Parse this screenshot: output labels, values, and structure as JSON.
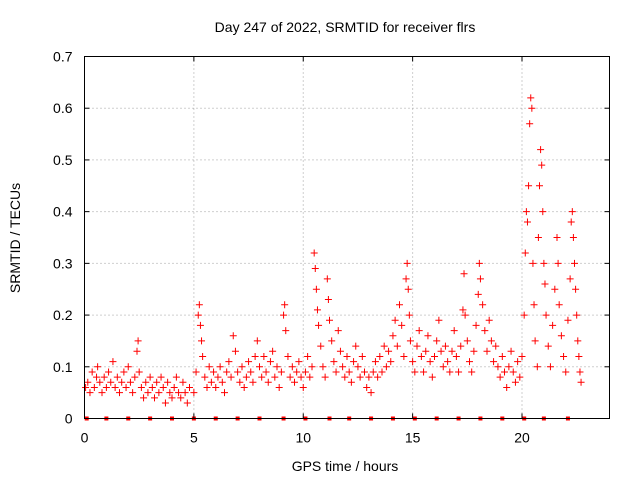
{
  "chart_data": {
    "type": "scatter",
    "title": "Day 247 of 2022, SRMTID for receiver flrs",
    "xlabel": "GPS time / hours",
    "ylabel": "SRMTID / TECUs",
    "xlim": [
      0,
      24
    ],
    "ylim": [
      0,
      0.7
    ],
    "xticks": [
      0,
      5,
      10,
      15,
      20
    ],
    "yticks": [
      0,
      0.1,
      0.2,
      0.3,
      0.4,
      0.5,
      0.6,
      0.7
    ],
    "xtick_labels": [
      "0",
      "5",
      "10",
      "15",
      "20"
    ],
    "ytick_labels": [
      "0",
      "0.1",
      "0.2",
      "0.3",
      "0.4",
      "0.5",
      "0.6",
      "0.7"
    ],
    "grid": true,
    "marker": "+",
    "color": "#ff0000",
    "series": [
      {
        "name": "SRMTID",
        "points": [
          [
            0.05,
            0.06
          ],
          [
            0.15,
            0.07
          ],
          [
            0.25,
            0.05
          ],
          [
            0.35,
            0.09
          ],
          [
            0.45,
            0.06
          ],
          [
            0.55,
            0.08
          ],
          [
            0.6,
            0.1
          ],
          [
            0.7,
            0.07
          ],
          [
            0.8,
            0.05
          ],
          [
            0.9,
            0.08
          ],
          [
            1.0,
            0.06
          ],
          [
            1.1,
            0.09
          ],
          [
            1.2,
            0.07
          ],
          [
            1.3,
            0.11
          ],
          [
            1.4,
            0.06
          ],
          [
            1.5,
            0.08
          ],
          [
            1.6,
            0.05
          ],
          [
            1.7,
            0.07
          ],
          [
            1.8,
            0.09
          ],
          [
            1.9,
            0.06
          ],
          [
            2.0,
            0.1
          ],
          [
            2.1,
            0.07
          ],
          [
            2.2,
            0.05
          ],
          [
            2.3,
            0.08
          ],
          [
            2.4,
            0.13
          ],
          [
            2.45,
            0.15
          ],
          [
            2.5,
            0.09
          ],
          [
            2.6,
            0.06
          ],
          [
            2.7,
            0.04
          ],
          [
            2.8,
            0.07
          ],
          [
            2.9,
            0.05
          ],
          [
            3.0,
            0.08
          ],
          [
            3.1,
            0.06
          ],
          [
            3.2,
            0.04
          ],
          [
            3.3,
            0.07
          ],
          [
            3.4,
            0.05
          ],
          [
            3.5,
            0.08
          ],
          [
            3.6,
            0.06
          ],
          [
            3.7,
            0.03
          ],
          [
            3.8,
            0.07
          ],
          [
            3.9,
            0.05
          ],
          [
            4.0,
            0.04
          ],
          [
            4.1,
            0.06
          ],
          [
            4.2,
            0.08
          ],
          [
            4.3,
            0.05
          ],
          [
            4.4,
            0.04
          ],
          [
            4.5,
            0.07
          ],
          [
            4.6,
            0.05
          ],
          [
            4.7,
            0.03
          ],
          [
            4.8,
            0.06
          ],
          [
            5.0,
            0.05
          ],
          [
            5.1,
            0.09
          ],
          [
            5.2,
            0.2
          ],
          [
            5.25,
            0.22
          ],
          [
            5.3,
            0.18
          ],
          [
            5.35,
            0.15
          ],
          [
            5.4,
            0.12
          ],
          [
            5.5,
            0.08
          ],
          [
            5.6,
            0.06
          ],
          [
            5.7,
            0.1
          ],
          [
            5.8,
            0.07
          ],
          [
            5.9,
            0.09
          ],
          [
            6.0,
            0.06
          ],
          [
            6.1,
            0.08
          ],
          [
            6.2,
            0.1
          ],
          [
            6.3,
            0.07
          ],
          [
            6.4,
            0.05
          ],
          [
            6.5,
            0.09
          ],
          [
            6.6,
            0.11
          ],
          [
            6.7,
            0.08
          ],
          [
            6.8,
            0.16
          ],
          [
            6.9,
            0.13
          ],
          [
            7.0,
            0.09
          ],
          [
            7.1,
            0.07
          ],
          [
            7.2,
            0.1
          ],
          [
            7.3,
            0.06
          ],
          [
            7.4,
            0.08
          ],
          [
            7.5,
            0.11
          ],
          [
            7.6,
            0.09
          ],
          [
            7.7,
            0.07
          ],
          [
            7.8,
            0.12
          ],
          [
            7.9,
            0.15
          ],
          [
            8.0,
            0.1
          ],
          [
            8.1,
            0.08
          ],
          [
            8.2,
            0.12
          ],
          [
            8.3,
            0.09
          ],
          [
            8.4,
            0.07
          ],
          [
            8.5,
            0.11
          ],
          [
            8.6,
            0.13
          ],
          [
            8.7,
            0.08
          ],
          [
            8.8,
            0.1
          ],
          [
            8.9,
            0.06
          ],
          [
            9.0,
            0.09
          ],
          [
            9.1,
            0.2
          ],
          [
            9.15,
            0.22
          ],
          [
            9.2,
            0.17
          ],
          [
            9.3,
            0.12
          ],
          [
            9.4,
            0.08
          ],
          [
            9.5,
            0.1
          ],
          [
            9.6,
            0.07
          ],
          [
            9.7,
            0.09
          ],
          [
            9.8,
            0.11
          ],
          [
            9.9,
            0.08
          ],
          [
            10.0,
            0.06
          ],
          [
            10.1,
            0.09
          ],
          [
            10.2,
            0.12
          ],
          [
            10.3,
            0.08
          ],
          [
            10.4,
            0.1
          ],
          [
            10.5,
            0.32
          ],
          [
            10.55,
            0.29
          ],
          [
            10.6,
            0.25
          ],
          [
            10.65,
            0.21
          ],
          [
            10.7,
            0.18
          ],
          [
            10.8,
            0.14
          ],
          [
            10.9,
            0.1
          ],
          [
            11.0,
            0.08
          ],
          [
            11.1,
            0.27
          ],
          [
            11.15,
            0.23
          ],
          [
            11.2,
            0.19
          ],
          [
            11.3,
            0.15
          ],
          [
            11.4,
            0.11
          ],
          [
            11.5,
            0.09
          ],
          [
            11.6,
            0.17
          ],
          [
            11.7,
            0.13
          ],
          [
            11.8,
            0.1
          ],
          [
            11.9,
            0.08
          ],
          [
            12.0,
            0.12
          ],
          [
            12.1,
            0.09
          ],
          [
            12.2,
            0.07
          ],
          [
            12.3,
            0.11
          ],
          [
            12.4,
            0.14
          ],
          [
            12.5,
            0.1
          ],
          [
            12.6,
            0.08
          ],
          [
            12.7,
            0.12
          ],
          [
            12.8,
            0.09
          ],
          [
            12.9,
            0.06
          ],
          [
            13.0,
            0.08
          ],
          [
            13.1,
            0.05
          ],
          [
            13.2,
            0.09
          ],
          [
            13.3,
            0.11
          ],
          [
            13.4,
            0.08
          ],
          [
            13.5,
            0.12
          ],
          [
            13.6,
            0.09
          ],
          [
            13.7,
            0.14
          ],
          [
            13.8,
            0.1
          ],
          [
            13.9,
            0.13
          ],
          [
            14.0,
            0.11
          ],
          [
            14.1,
            0.16
          ],
          [
            14.2,
            0.19
          ],
          [
            14.3,
            0.14
          ],
          [
            14.4,
            0.22
          ],
          [
            14.5,
            0.18
          ],
          [
            14.6,
            0.12
          ],
          [
            14.7,
            0.27
          ],
          [
            14.75,
            0.3
          ],
          [
            14.8,
            0.25
          ],
          [
            14.85,
            0.2
          ],
          [
            14.9,
            0.15
          ],
          [
            15.0,
            0.11
          ],
          [
            15.1,
            0.09
          ],
          [
            15.2,
            0.14
          ],
          [
            15.3,
            0.17
          ],
          [
            15.4,
            0.12
          ],
          [
            15.5,
            0.09
          ],
          [
            15.6,
            0.13
          ],
          [
            15.7,
            0.16
          ],
          [
            15.8,
            0.11
          ],
          [
            15.9,
            0.08
          ],
          [
            16.0,
            0.12
          ],
          [
            16.1,
            0.15
          ],
          [
            16.2,
            0.19
          ],
          [
            16.3,
            0.13
          ],
          [
            16.4,
            0.1
          ],
          [
            16.5,
            0.14
          ],
          [
            16.6,
            0.11
          ],
          [
            16.7,
            0.09
          ],
          [
            16.8,
            0.13
          ],
          [
            16.9,
            0.17
          ],
          [
            17.0,
            0.12
          ],
          [
            17.1,
            0.09
          ],
          [
            17.2,
            0.14
          ],
          [
            17.3,
            0.21
          ],
          [
            17.35,
            0.28
          ],
          [
            17.4,
            0.2
          ],
          [
            17.5,
            0.15
          ],
          [
            17.6,
            0.11
          ],
          [
            17.7,
            0.09
          ],
          [
            17.8,
            0.13
          ],
          [
            17.9,
            0.18
          ],
          [
            18.0,
            0.24
          ],
          [
            18.05,
            0.3
          ],
          [
            18.1,
            0.27
          ],
          [
            18.2,
            0.22
          ],
          [
            18.3,
            0.17
          ],
          [
            18.4,
            0.13
          ],
          [
            18.5,
            0.19
          ],
          [
            18.6,
            0.15
          ],
          [
            18.7,
            0.11
          ],
          [
            18.8,
            0.14
          ],
          [
            18.9,
            0.1
          ],
          [
            19.0,
            0.08
          ],
          [
            19.1,
            0.12
          ],
          [
            19.2,
            0.09
          ],
          [
            19.3,
            0.06
          ],
          [
            19.4,
            0.1
          ],
          [
            19.5,
            0.13
          ],
          [
            19.6,
            0.09
          ],
          [
            19.7,
            0.07
          ],
          [
            19.8,
            0.11
          ],
          [
            19.9,
            0.08
          ],
          [
            20.0,
            0.12
          ],
          [
            20.1,
            0.2
          ],
          [
            20.15,
            0.32
          ],
          [
            20.2,
            0.4
          ],
          [
            20.25,
            0.38
          ],
          [
            20.3,
            0.45
          ],
          [
            20.35,
            0.57
          ],
          [
            20.4,
            0.62
          ],
          [
            20.45,
            0.6
          ],
          [
            20.5,
            0.3
          ],
          [
            20.55,
            0.22
          ],
          [
            20.6,
            0.15
          ],
          [
            20.7,
            0.1
          ],
          [
            20.75,
            0.35
          ],
          [
            20.8,
            0.45
          ],
          [
            20.85,
            0.52
          ],
          [
            20.9,
            0.49
          ],
          [
            20.95,
            0.4
          ],
          [
            21.0,
            0.3
          ],
          [
            21.05,
            0.26
          ],
          [
            21.1,
            0.2
          ],
          [
            21.2,
            0.14
          ],
          [
            21.3,
            0.1
          ],
          [
            21.4,
            0.18
          ],
          [
            21.5,
            0.25
          ],
          [
            21.6,
            0.35
          ],
          [
            21.65,
            0.3
          ],
          [
            21.7,
            0.22
          ],
          [
            21.8,
            0.16
          ],
          [
            21.9,
            0.12
          ],
          [
            22.0,
            0.09
          ],
          [
            22.1,
            0.19
          ],
          [
            22.2,
            0.27
          ],
          [
            22.25,
            0.38
          ],
          [
            22.3,
            0.4
          ],
          [
            22.35,
            0.35
          ],
          [
            22.4,
            0.3
          ],
          [
            22.45,
            0.25
          ],
          [
            22.5,
            0.2
          ],
          [
            22.55,
            0.15
          ],
          [
            22.6,
            0.12
          ],
          [
            22.65,
            0.09
          ],
          [
            22.7,
            0.07
          ]
        ]
      }
    ],
    "gap_markers_x": [
      0.1,
      1.0,
      2.0,
      3.0,
      4.0,
      5.0,
      6.0,
      7.0,
      8.0,
      9.1,
      10.1,
      11.2,
      12.1,
      13.1,
      14.1,
      15.1,
      16.1,
      17.1,
      18.1,
      19.1,
      20.1,
      21.0,
      22.1
    ]
  }
}
